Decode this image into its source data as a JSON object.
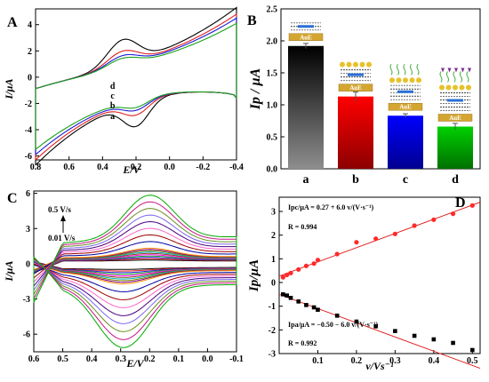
{
  "chart_data": [
    {
      "panel": "A",
      "type": "line",
      "xlabel": "E/V",
      "ylabel": "I/µA",
      "xlim": [
        0.8,
        -0.4
      ],
      "ylim": [
        -6.3,
        5.2
      ],
      "xticks": [
        "0.8",
        "0.6",
        "0.4",
        "0.2",
        "0.0",
        "-0.2",
        "-0.4"
      ],
      "yticks": [
        "4",
        "2",
        "0",
        "-2",
        "-4",
        "-6"
      ],
      "series": [
        {
          "name": "a",
          "color": "#000000",
          "vertex_high": [
            0.8,
            -6.0
          ],
          "vertex_low": [
            -0.4,
            4.8
          ],
          "ipc": 1.9,
          "ipa": 1.9
        },
        {
          "name": "b",
          "color": "#e02020",
          "vertex_high": [
            0.8,
            -5.6
          ],
          "vertex_low": [
            -0.4,
            4.3
          ],
          "ipc": 1.1,
          "ipa": 1.1
        },
        {
          "name": "c",
          "color": "#1c1cd6",
          "vertex_high": [
            0.8,
            -5.2
          ],
          "vertex_low": [
            -0.4,
            4.0
          ],
          "ipc": 0.8,
          "ipa": 0.8
        },
        {
          "name": "d",
          "color": "#19a019",
          "vertex_high": [
            0.8,
            -4.8
          ],
          "vertex_low": [
            -0.4,
            3.6
          ],
          "ipc": 0.65,
          "ipa": 0.65
        }
      ]
    },
    {
      "panel": "B",
      "type": "bar",
      "ylabel": "Ip / µA",
      "categories": [
        "a",
        "b",
        "c",
        "d"
      ],
      "values": [
        1.92,
        1.13,
        0.83,
        0.66
      ],
      "errors": [
        0.04,
        0.07,
        0.03,
        0.05
      ],
      "ylim": [
        0.0,
        2.5
      ],
      "yticks": [
        "0.0",
        "0.5",
        "1.0",
        "1.5",
        "2.0",
        "2.5"
      ],
      "bar_colors": [
        [
          "#000000",
          "#8e8e8e"
        ],
        [
          "#ff0000",
          "#8c0000"
        ],
        [
          "#0000ff",
          "#000090"
        ],
        [
          "#00d000",
          "#007000"
        ]
      ],
      "electrode_label": "AuE"
    },
    {
      "panel": "C",
      "type": "line",
      "xlabel": "E/V",
      "ylabel": "I/µA",
      "xlim": [
        0.6,
        -0.1
      ],
      "ylim": [
        -7.5,
        6.2
      ],
      "xticks": [
        "0.6",
        "0.5",
        "0.4",
        "0.3",
        "0.2",
        "0.1",
        "0.0",
        "-0.1"
      ],
      "yticks": [
        "6",
        "3",
        "0",
        "-3",
        "-6"
      ],
      "annotations": [
        "0.5 V/s",
        "0.01 V/s"
      ],
      "scan_rates": [
        0.01,
        0.02,
        0.03,
        0.04,
        0.05,
        0.06,
        0.07,
        0.08,
        0.09,
        0.1,
        0.15,
        0.2,
        0.25,
        0.3,
        0.35,
        0.4,
        0.45,
        0.5
      ],
      "colors": [
        "#000000",
        "#e02020",
        "#1c1cd6",
        "#19a019",
        "#ff00ff",
        "#8b4513",
        "#00b0c8",
        "#808000",
        "#800080",
        "#ff8c00",
        "#0000a0",
        "#a00000",
        "#ff66cc",
        "#4b0082",
        "#7b68ee",
        "#6b8e23",
        "#c71585",
        "#00aa00"
      ]
    },
    {
      "panel": "D",
      "type": "scatter",
      "xlabel": "v/Vs⁻¹",
      "ylabel": "Ip/µA",
      "xlim": [
        0.0,
        0.52
      ],
      "ylim": [
        -3.0,
        3.6
      ],
      "xticks": [
        "0.1",
        "0.2",
        "0.3",
        "0.4",
        "0.5"
      ],
      "yticks": [
        "3",
        "2",
        "1",
        "0",
        "-1",
        "-2",
        "-3"
      ],
      "series": [
        {
          "name": "Ipc",
          "color": "#ff2a2a",
          "x": [
            0.01,
            0.02,
            0.03,
            0.05,
            0.07,
            0.09,
            0.1,
            0.15,
            0.2,
            0.25,
            0.3,
            0.35,
            0.4,
            0.45,
            0.5
          ],
          "y": [
            0.22,
            0.32,
            0.4,
            0.55,
            0.7,
            0.8,
            0.95,
            1.2,
            1.7,
            1.85,
            2.05,
            2.4,
            2.65,
            2.9,
            3.25
          ],
          "fit": {
            "intercept": 0.27,
            "slope": 6.0
          }
        },
        {
          "name": "Ipa",
          "color": "#000000",
          "x": [
            0.01,
            0.02,
            0.03,
            0.05,
            0.07,
            0.09,
            0.1,
            0.15,
            0.2,
            0.25,
            0.3,
            0.35,
            0.4,
            0.45,
            0.5
          ],
          "y": [
            -0.5,
            -0.55,
            -0.65,
            -0.8,
            -0.95,
            -1.05,
            -1.15,
            -1.4,
            -1.65,
            -1.85,
            -2.05,
            -2.25,
            -2.4,
            -2.55,
            -2.85
          ],
          "fit": {
            "intercept": -0.5,
            "slope": -6.0
          }
        }
      ],
      "equations": {
        "pc_main": "Ipc/µA = 0.27 + 6.0 v/(V·s⁻¹)",
        "pc_r": "R = 0.994",
        "pa_main": "Ipa/µA = −0.50 − 6.0 v/(V·s⁻¹)",
        "pa_r": "R = 0.992"
      }
    }
  ],
  "panel_letters": [
    "A",
    "B",
    "C",
    "D"
  ]
}
